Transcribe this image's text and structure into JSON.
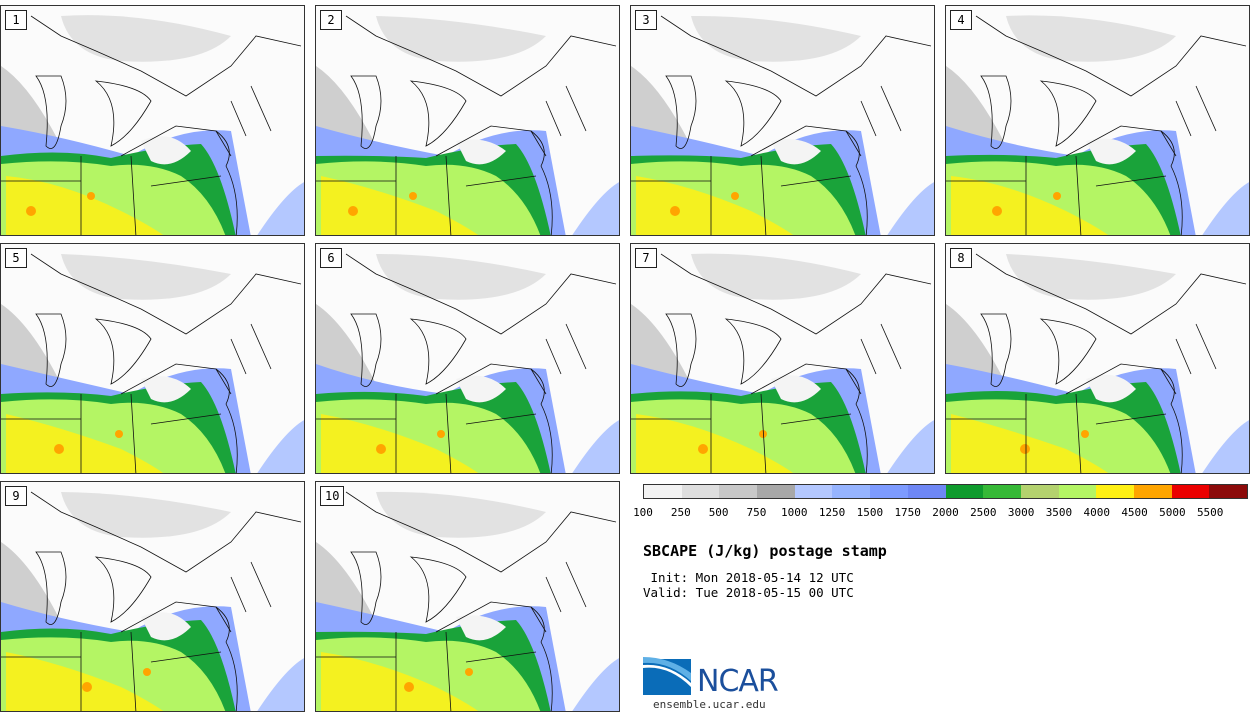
{
  "panels": [
    {
      "label": "1"
    },
    {
      "label": "2"
    },
    {
      "label": "3"
    },
    {
      "label": "4"
    },
    {
      "label": "5"
    },
    {
      "label": "6"
    },
    {
      "label": "7"
    },
    {
      "label": "8"
    },
    {
      "label": "9"
    },
    {
      "label": "10"
    }
  ],
  "colorbar": {
    "colors": [
      "#f3f3f3",
      "#dedede",
      "#c8c8c8",
      "#a8a8a8",
      "#b4c8ff",
      "#96b4ff",
      "#7d9bff",
      "#6e87f5",
      "#0f9b2d",
      "#37b937",
      "#b4d26e",
      "#b4f564",
      "#fff014",
      "#ffa500",
      "#eb0000",
      "#8c0a0a"
    ],
    "ticks": [
      "100",
      "250",
      "500",
      "750",
      "1000",
      "1250",
      "1500",
      "1750",
      "2000",
      "2500",
      "3000",
      "3500",
      "4000",
      "4500",
      "5000",
      "5500"
    ]
  },
  "title": "SBCAPE (J/kg) postage stamp",
  "init_line": " Init: Mon 2018-05-14 12 UTC",
  "valid_line": "Valid: Tue 2018-05-15 00 UTC",
  "logo_text": "NCAR",
  "url": "ensemble.ucar.edu"
}
